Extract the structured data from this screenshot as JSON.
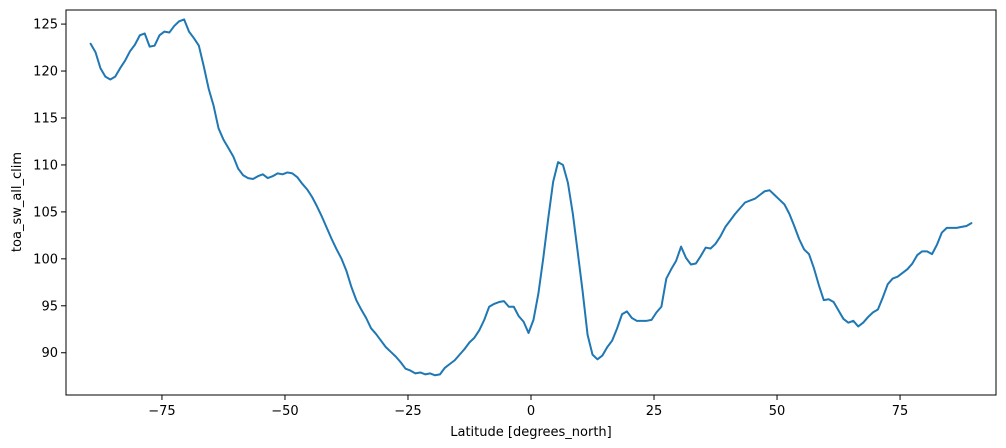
{
  "chart_data": {
    "type": "line",
    "title": "",
    "xlabel": "Latitude [degrees_north]",
    "ylabel": "toa_sw_all_clim",
    "xlim": [
      -94.5,
      94.5
    ],
    "ylim": [
      85.5,
      126.5
    ],
    "xticks": [
      -75,
      -50,
      -25,
      0,
      25,
      50,
      75
    ],
    "xtick_labels": [
      "−75",
      "−50",
      "−25",
      "0",
      "25",
      "50",
      "75"
    ],
    "yticks": [
      90,
      95,
      100,
      105,
      110,
      115,
      120,
      125
    ],
    "ytick_labels": [
      "90",
      "95",
      "100",
      "105",
      "110",
      "115",
      "120",
      "125"
    ],
    "grid": false,
    "series": [
      {
        "color": "#1f77b4",
        "x": [
          -89.5,
          -88.5,
          -87.5,
          -86.5,
          -85.5,
          -84.5,
          -83.5,
          -82.5,
          -81.5,
          -80.5,
          -79.5,
          -78.5,
          -77.5,
          -76.5,
          -75.5,
          -74.5,
          -73.5,
          -72.5,
          -71.5,
          -70.5,
          -69.5,
          -68.5,
          -67.5,
          -66.5,
          -65.5,
          -64.5,
          -63.5,
          -62.5,
          -61.5,
          -60.5,
          -59.5,
          -58.5,
          -57.5,
          -56.5,
          -55.5,
          -54.5,
          -53.5,
          -52.5,
          -51.5,
          -50.5,
          -49.5,
          -48.5,
          -47.5,
          -46.5,
          -45.5,
          -44.5,
          -43.5,
          -42.5,
          -41.5,
          -40.5,
          -39.5,
          -38.5,
          -37.5,
          -36.5,
          -35.5,
          -34.5,
          -33.5,
          -32.5,
          -31.5,
          -30.5,
          -29.5,
          -28.5,
          -27.5,
          -26.5,
          -25.5,
          -24.5,
          -23.5,
          -22.5,
          -21.5,
          -20.5,
          -19.5,
          -18.5,
          -17.5,
          -16.5,
          -15.5,
          -14.5,
          -13.5,
          -12.5,
          -11.5,
          -10.5,
          -9.5,
          -8.5,
          -7.5,
          -6.5,
          -5.5,
          -4.5,
          -3.5,
          -2.5,
          -1.5,
          -0.5,
          0.5,
          1.5,
          2.5,
          3.5,
          4.5,
          5.5,
          6.5,
          7.5,
          8.5,
          9.5,
          10.5,
          11.5,
          12.5,
          13.5,
          14.5,
          15.5,
          16.5,
          17.5,
          18.5,
          19.5,
          20.5,
          21.5,
          22.5,
          23.5,
          24.5,
          25.5,
          26.5,
          27.5,
          28.5,
          29.5,
          30.5,
          31.5,
          32.5,
          33.5,
          34.5,
          35.5,
          36.5,
          37.5,
          38.5,
          39.5,
          40.5,
          41.5,
          42.5,
          43.5,
          44.5,
          45.5,
          46.5,
          47.5,
          48.5,
          49.5,
          50.5,
          51.5,
          52.5,
          53.5,
          54.5,
          55.5,
          56.5,
          57.5,
          58.5,
          59.5,
          60.5,
          61.5,
          62.5,
          63.5,
          64.5,
          65.5,
          66.5,
          67.5,
          68.5,
          69.5,
          70.5,
          71.5,
          72.5,
          73.5,
          74.5,
          75.5,
          76.5,
          77.5,
          78.5,
          79.5,
          80.5,
          81.5,
          82.5,
          83.5,
          84.5,
          85.5,
          86.5,
          87.5,
          88.5,
          89.5
        ],
        "y": [
          122.9,
          122.0,
          120.3,
          119.4,
          119.1,
          119.4,
          120.3,
          121.1,
          122.1,
          122.8,
          123.8,
          124.0,
          122.6,
          122.7,
          123.8,
          124.2,
          124.1,
          124.8,
          125.3,
          125.5,
          124.2,
          123.5,
          122.7,
          120.5,
          118.1,
          116.3,
          113.9,
          112.7,
          111.8,
          110.9,
          109.6,
          108.9,
          108.6,
          108.5,
          108.8,
          109.0,
          108.6,
          108.8,
          109.1,
          109.0,
          109.2,
          109.1,
          108.7,
          108.0,
          107.4,
          106.6,
          105.6,
          104.5,
          103.3,
          102.1,
          101.0,
          100.0,
          98.7,
          97.0,
          95.6,
          94.6,
          93.7,
          92.6,
          92.0,
          91.3,
          90.6,
          90.1,
          89.6,
          89.0,
          88.3,
          88.1,
          87.8,
          87.9,
          87.7,
          87.8,
          87.6,
          87.7,
          88.4,
          88.8,
          89.2,
          89.8,
          90.4,
          91.1,
          91.6,
          92.4,
          93.5,
          94.9,
          95.2,
          95.4,
          95.5,
          94.9,
          94.9,
          93.9,
          93.3,
          92.1,
          93.5,
          96.3,
          100.1,
          104.3,
          108.2,
          110.3,
          110.0,
          108.1,
          104.8,
          100.7,
          96.5,
          91.9,
          89.8,
          89.3,
          89.7,
          90.6,
          91.3,
          92.6,
          94.1,
          94.4,
          93.7,
          93.4,
          93.4,
          93.4,
          93.5,
          94.3,
          94.9,
          97.9,
          98.9,
          99.8,
          101.3,
          100.1,
          99.4,
          99.5,
          100.3,
          101.2,
          101.1,
          101.6,
          102.4,
          103.4,
          104.1,
          104.8,
          105.4,
          106.0,
          106.2,
          106.4,
          106.8,
          107.2,
          107.3,
          106.8,
          106.3,
          105.8,
          104.8,
          103.5,
          102.1,
          101.0,
          100.5,
          99.0,
          97.2,
          95.6,
          95.7,
          95.4,
          94.5,
          93.6,
          93.2,
          93.4,
          92.8,
          93.2,
          93.8,
          94.3,
          94.6,
          95.9,
          97.3,
          97.9,
          98.1,
          98.5,
          98.9,
          99.5,
          100.4,
          100.8,
          100.8,
          100.5,
          101.5,
          102.8,
          103.3,
          103.3,
          103.3,
          103.4,
          103.5,
          103.8
        ]
      }
    ]
  }
}
